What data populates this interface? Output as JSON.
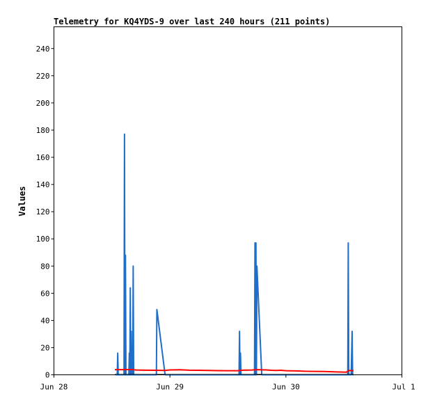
{
  "chart_data": {
    "type": "line",
    "title": "Telemetry for KQ4YDS-9 over last 240 hours (211 points)",
    "xlabel": "",
    "ylabel": "Values",
    "ylim": [
      0,
      256
    ],
    "yticks": [
      0,
      20,
      40,
      60,
      80,
      100,
      120,
      140,
      160,
      180,
      200,
      220,
      240
    ],
    "xlim": [
      0,
      72
    ],
    "xtick_labels": [
      {
        "x": 0,
        "label": "Jun 28"
      },
      {
        "x": 24,
        "label": "Jun 29"
      },
      {
        "x": 48,
        "label": "Jun 30"
      },
      {
        "x": 72,
        "label": "Jul 1"
      }
    ],
    "grid": false,
    "series": [
      {
        "color": "#1f6fc9",
        "points": [
          [
            12.7,
            0
          ],
          [
            13.1,
            0
          ],
          [
            13.2,
            16
          ],
          [
            13.3,
            0
          ],
          [
            14.0,
            0
          ],
          [
            14.5,
            0
          ],
          [
            14.6,
            177
          ],
          [
            14.7,
            0
          ],
          [
            14.8,
            88
          ],
          [
            14.9,
            0
          ],
          [
            15.5,
            0
          ],
          [
            15.6,
            16
          ],
          [
            15.7,
            0
          ],
          [
            15.8,
            64
          ],
          [
            15.9,
            0
          ],
          [
            16.0,
            32
          ],
          [
            16.1,
            0
          ],
          [
            16.2,
            16
          ],
          [
            16.3,
            0
          ],
          [
            16.4,
            80
          ],
          [
            16.5,
            0
          ],
          [
            16.6,
            0
          ],
          [
            21.2,
            0
          ],
          [
            21.3,
            48
          ],
          [
            23.0,
            0
          ],
          [
            24.0,
            0
          ],
          [
            38.3,
            0
          ],
          [
            38.4,
            32
          ],
          [
            38.5,
            0
          ],
          [
            38.6,
            16
          ],
          [
            38.7,
            0
          ],
          [
            41.5,
            0
          ],
          [
            41.6,
            97
          ],
          [
            41.7,
            0
          ],
          [
            41.8,
            97
          ],
          [
            41.9,
            0
          ],
          [
            42.0,
            80
          ],
          [
            42.2,
            64
          ],
          [
            43.0,
            0
          ],
          [
            60.8,
            0
          ],
          [
            60.9,
            97
          ],
          [
            61.0,
            0
          ],
          [
            61.5,
            0
          ],
          [
            61.6,
            16
          ],
          [
            61.7,
            32
          ],
          [
            61.8,
            0
          ],
          [
            62.0,
            0
          ]
        ]
      },
      {
        "color": "#ff0000",
        "points": [
          [
            12.6,
            3.8
          ],
          [
            14,
            3.8
          ],
          [
            16,
            3.9
          ],
          [
            17,
            3.5
          ],
          [
            19,
            3.4
          ],
          [
            21,
            3.3
          ],
          [
            23,
            3.2
          ],
          [
            24,
            3.6
          ],
          [
            26,
            3.7
          ],
          [
            28,
            3.4
          ],
          [
            30,
            3.3
          ],
          [
            32,
            3.2
          ],
          [
            34,
            3.1
          ],
          [
            36,
            3.0
          ],
          [
            38,
            3.0
          ],
          [
            39,
            3.4
          ],
          [
            41,
            3.5
          ],
          [
            42,
            3.8
          ],
          [
            44,
            3.6
          ],
          [
            45,
            3.3
          ],
          [
            46,
            3.2
          ],
          [
            47,
            3.3
          ],
          [
            48,
            3.0
          ],
          [
            50,
            2.9
          ],
          [
            52,
            2.6
          ],
          [
            54,
            2.5
          ],
          [
            56,
            2.4
          ],
          [
            58,
            2.2
          ],
          [
            60,
            2.0
          ],
          [
            60.5,
            1.9
          ],
          [
            61,
            3.2
          ],
          [
            62,
            3.0
          ]
        ]
      },
      {
        "color": "#000000",
        "points": [
          [
            12.6,
            0.3
          ],
          [
            62,
            0.3
          ]
        ]
      }
    ]
  }
}
